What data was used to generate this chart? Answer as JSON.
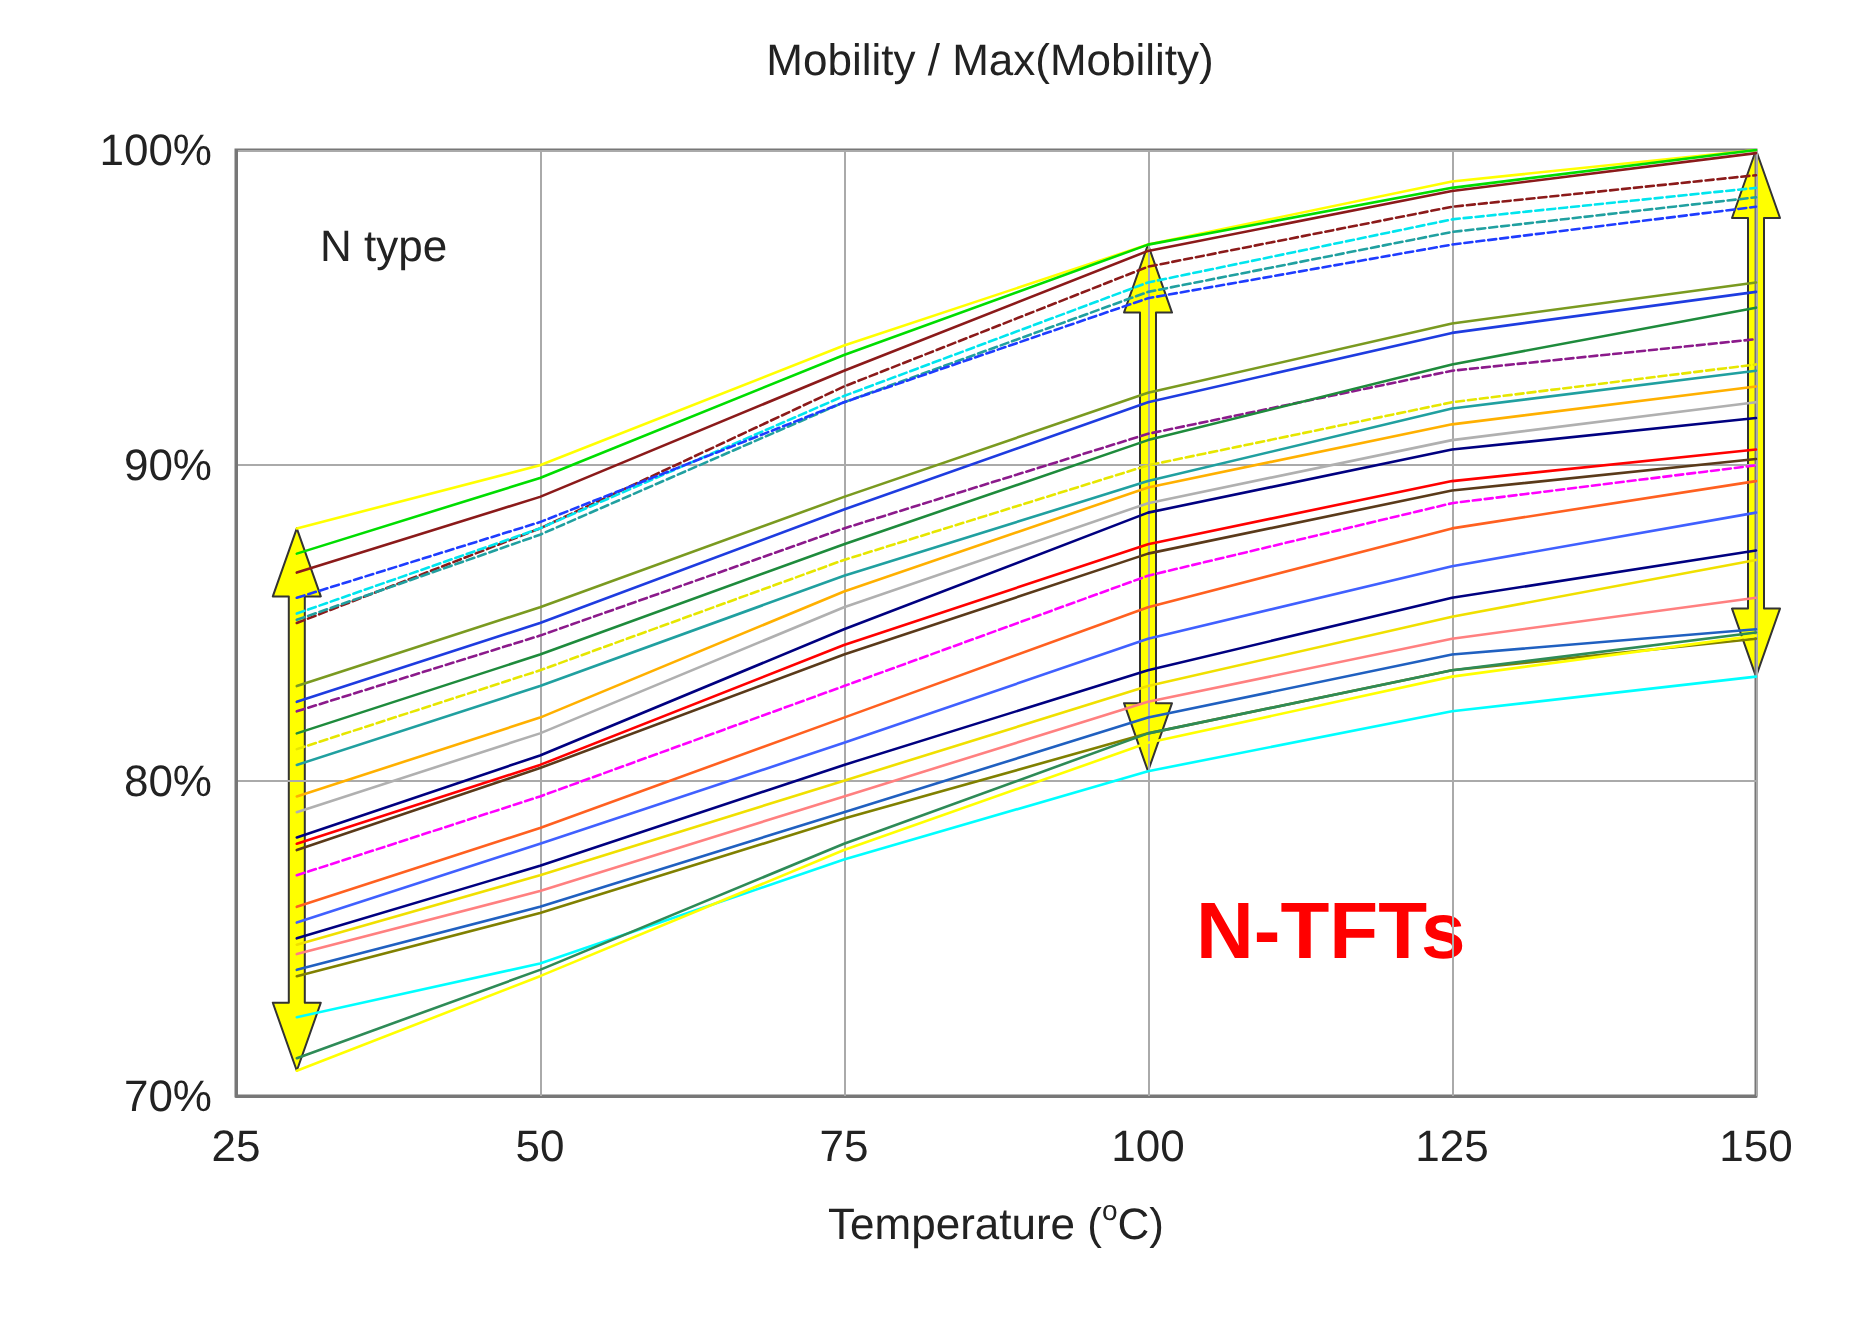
{
  "chart_data": {
    "type": "line",
    "title": "Mobility / Max(Mobility)",
    "xlabel": "Temperature ($^{o}$C)",
    "annotations": [
      "N type",
      "N-TFTs"
    ],
    "x": [
      30,
      50,
      75,
      100,
      125,
      150
    ],
    "xlim": [
      25,
      150
    ],
    "xticks": [
      25,
      50,
      75,
      100,
      125,
      150
    ],
    "ylim": [
      70,
      100
    ],
    "yticks": [
      {
        "value": 70,
        "label": "70%"
      },
      {
        "value": 80,
        "label": "80%"
      },
      {
        "value": 90,
        "label": "90%"
      },
      {
        "value": 100,
        "label": "100%"
      }
    ],
    "grid": true,
    "marker": "none",
    "line_style": "solid",
    "series": [
      {
        "color": "#ffff00",
        "values": [
          88,
          90,
          93.8,
          97,
          99,
          100
        ]
      },
      {
        "color": "#00dd00",
        "values": [
          87.2,
          89.6,
          93.5,
          97,
          98.8,
          100
        ]
      },
      {
        "color": "#8b1a1a",
        "values": [
          86.6,
          89,
          93,
          96.8,
          98.7,
          99.9
        ]
      },
      {
        "color": "#8b1a1a",
        "line_style": "dashed",
        "values": [
          85,
          88,
          92.5,
          96.3,
          98.2,
          99.2
        ]
      },
      {
        "color": "#00e5ee",
        "line_style": "dashed",
        "values": [
          85.3,
          88,
          92.2,
          95.8,
          97.8,
          98.8
        ]
      },
      {
        "color": "#20a0a0",
        "line_style": "dashed",
        "values": [
          85.1,
          87.8,
          92,
          95.5,
          97.4,
          98.5
        ]
      },
      {
        "color": "#1e3cff",
        "line_style": "dashed",
        "values": [
          85.8,
          88.2,
          92,
          95.3,
          97,
          98.2
        ]
      },
      {
        "color": "#7a9a20",
        "values": [
          83,
          85.5,
          89,
          92.3,
          94.5,
          95.8
        ]
      },
      {
        "color": "#1e3ce0",
        "values": [
          82.5,
          85,
          88.6,
          92,
          94.2,
          95.5
        ]
      },
      {
        "color": "#8b1a8b",
        "line_style": "dashed",
        "values": [
          82.2,
          84.6,
          88,
          91,
          93,
          94
        ]
      },
      {
        "color": "#1e8b3c",
        "values": [
          81.5,
          84,
          87.5,
          90.8,
          93.2,
          95
        ]
      },
      {
        "color": "#e6e600",
        "line_style": "dashed",
        "values": [
          81,
          83.5,
          87,
          90,
          92,
          93.2
        ]
      },
      {
        "color": "#20a0a0",
        "values": [
          80.5,
          83,
          86.5,
          89.5,
          91.8,
          93
        ]
      },
      {
        "color": "#ffb000",
        "values": [
          79.5,
          82,
          86,
          89.3,
          91.3,
          92.5
        ]
      },
      {
        "color": "#b0b0b0",
        "values": [
          79,
          81.5,
          85.5,
          88.8,
          90.8,
          92
        ]
      },
      {
        "color": "#000080",
        "values": [
          78.2,
          80.8,
          84.8,
          88.5,
          90.5,
          91.5
        ]
      },
      {
        "color": "#ff0000",
        "values": [
          78,
          80.5,
          84.3,
          87.5,
          89.5,
          90.5
        ]
      },
      {
        "color": "#5a3a1a",
        "values": [
          77.8,
          80.4,
          84,
          87.2,
          89.2,
          90.2
        ]
      },
      {
        "color": "#ff00ff",
        "line_style": "dashed",
        "values": [
          77,
          79.5,
          83,
          86.5,
          88.8,
          90
        ]
      },
      {
        "color": "#ff6020",
        "values": [
          76,
          78.5,
          82,
          85.5,
          88,
          89.5
        ]
      },
      {
        "color": "#4060ff",
        "values": [
          75.5,
          78,
          81.2,
          84.5,
          86.8,
          88.5
        ]
      },
      {
        "color": "#000080",
        "values": [
          75,
          77.3,
          80.5,
          83.5,
          85.8,
          87.3
        ]
      },
      {
        "color": "#f0e000",
        "values": [
          74.8,
          77,
          80,
          83,
          85.2,
          87
        ]
      },
      {
        "color": "#ff8080",
        "values": [
          74.5,
          76.5,
          79.5,
          82.5,
          84.5,
          85.8
        ]
      },
      {
        "color": "#2060c0",
        "values": [
          74,
          76,
          79,
          82,
          84,
          84.8
        ]
      },
      {
        "color": "#808000",
        "values": [
          73.8,
          75.8,
          78.8,
          81.5,
          83.5,
          84.5
        ]
      },
      {
        "color": "#00ffff",
        "values": [
          72.5,
          74.2,
          77.5,
          80.3,
          82.2,
          83.3
        ]
      },
      {
        "color": "#2e8b57",
        "values": [
          71.2,
          74,
          78,
          81.5,
          83.5,
          84.7
        ]
      },
      {
        "color": "#ffff00",
        "values": [
          70.8,
          73.8,
          77.8,
          81.2,
          83.3,
          84.6
        ]
      }
    ]
  }
}
